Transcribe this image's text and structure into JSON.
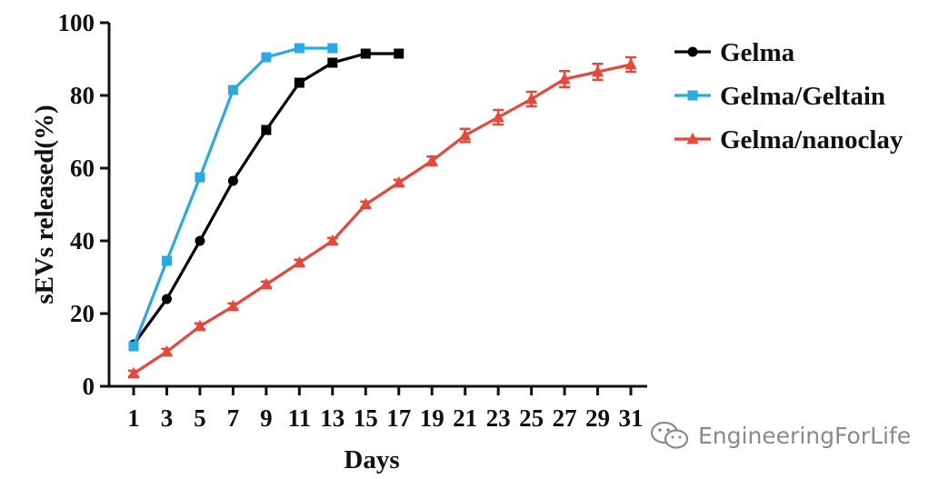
{
  "chart_data": {
    "type": "line",
    "title": "",
    "xlabel": "Days",
    "ylabel": "sEVs released(%)",
    "xlim": [
      1,
      31
    ],
    "ylim": [
      0,
      100
    ],
    "x_ticks": [
      "1",
      "3",
      "5",
      "7",
      "9",
      "11",
      "13",
      "15",
      "17",
      "19",
      "21",
      "23",
      "25",
      "27",
      "29",
      "31"
    ],
    "y_ticks": [
      "0",
      "20",
      "40",
      "60",
      "80",
      "100"
    ],
    "legend_position": "top-right",
    "series": [
      {
        "name": "Gelma",
        "color": "#000000",
        "marker": "circle-then-square",
        "x": [
          1,
          3,
          5,
          7,
          9,
          11,
          13,
          15,
          17
        ],
        "y": [
          11.5,
          24,
          40,
          56.5,
          70.5,
          83.5,
          89,
          91.5,
          91.5
        ]
      },
      {
        "name": "Gelma/Geltain",
        "color": "#29aae1",
        "marker": "square",
        "x": [
          1,
          3,
          5,
          7,
          9,
          11,
          13
        ],
        "y": [
          11,
          34.5,
          57.5,
          81.5,
          90.5,
          93,
          93
        ]
      },
      {
        "name": "Gelma/nanoclay",
        "color": "#e8483b",
        "marker": "triangle",
        "x": [
          1,
          3,
          5,
          7,
          9,
          11,
          13,
          15,
          17,
          19,
          21,
          23,
          25,
          27,
          29,
          31
        ],
        "y": [
          3.5,
          9.5,
          16.5,
          22,
          28,
          34,
          40,
          50,
          56,
          62,
          69,
          74,
          79,
          84.5,
          86.5,
          88.5
        ],
        "error": [
          0.8,
          0.8,
          0.8,
          0.8,
          0.8,
          0.8,
          0.8,
          0.8,
          0.8,
          1.2,
          1.8,
          2,
          2,
          2.2,
          2.2,
          2
        ]
      }
    ]
  },
  "watermark": {
    "icon": "wechat-icon",
    "text": "EngineeringForLife"
  }
}
